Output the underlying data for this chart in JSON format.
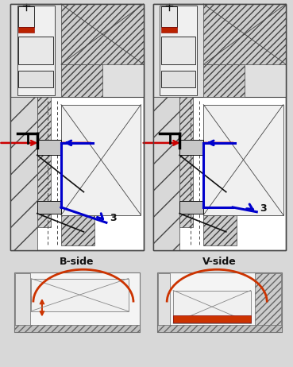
{
  "line_color": "#444444",
  "dark_line": "#111111",
  "blue_arrow": "#0000cc",
  "red_arrow": "#cc0000",
  "orange_color": "#cc3300",
  "label_bside": "B-side",
  "label_vside": "V-side",
  "label_3": "3",
  "bg_color": "#d8d8d8"
}
